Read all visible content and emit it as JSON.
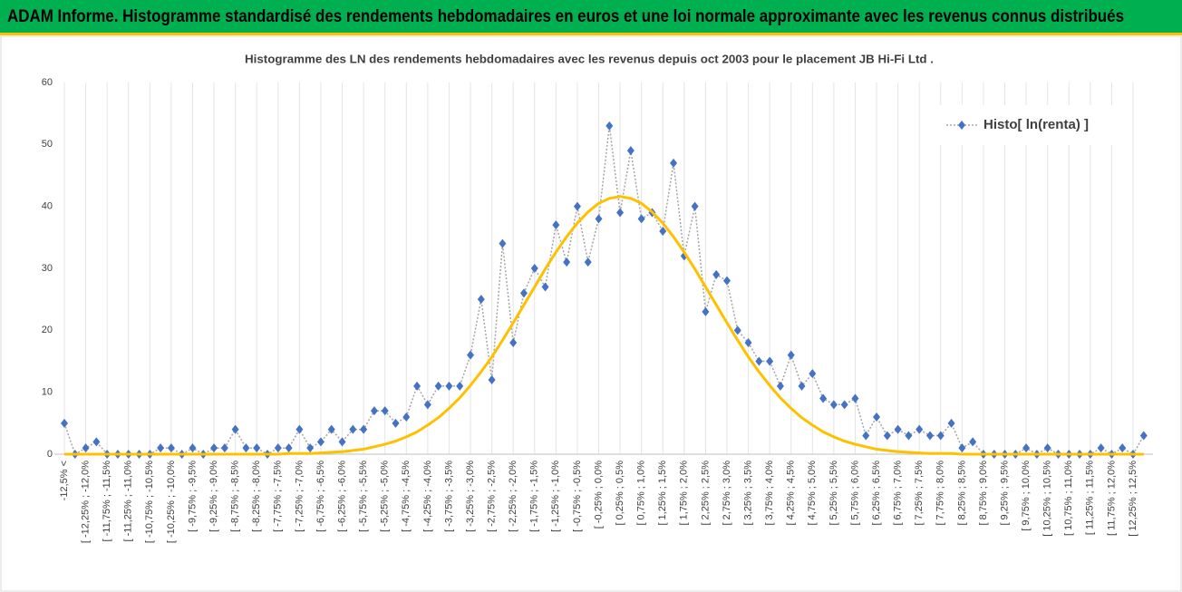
{
  "header": {
    "title": "ADAM Informe. Histogramme standardisé des rendements hebdomadaires en euros et une loi normale approximante avec les revenus connus distribués"
  },
  "chart_data": {
    "type": "line",
    "title": "Histogramme des LN des rendements hebdomadaires avec les revenus depuis oct 2003 pour le placement JB Hi-Fi Ltd .",
    "categories": [
      "-12,5% <",
      null,
      "[ -12,25% ; -12,0%",
      null,
      "[ -11,75% ; -11,5%",
      null,
      "[ -11,25% ; -11,0%",
      null,
      "[ -10,75% ; -10,5%",
      null,
      "[ -10,25% ; -10,0%",
      null,
      "[ -9,75% ; -9,5%",
      null,
      "[ -9,25% ; -9,0%",
      null,
      "[ -8,75% ; -8,5%",
      null,
      "[ -8,25% ; -8,0%",
      null,
      "[ -7,75% ; -7,5%",
      null,
      "[ -7,25% ; -7,0%",
      null,
      "[ -6,75% ; -6,5%",
      null,
      "[ -6,25% ; -6,0%",
      null,
      "[ -5,75% ; -5,5%",
      null,
      "[ -5,25% ; -5,0%",
      null,
      "[ -4,75% ; -4,5%",
      null,
      "[ -4,25% ; -4,0%",
      null,
      "[ -3,75% ; -3,5%",
      null,
      "[ -3,25% ; -3,0%",
      null,
      "[ -2,75% ; -2,5%",
      null,
      "[ -2,25% ; -2,0%",
      null,
      "[ -1,75% ; -1,5%",
      null,
      "[ -1,25% ; -1,0%",
      null,
      "[ -0,75% ; -0,5%",
      null,
      "[ -0,25% ; 0,0%",
      null,
      "[ 0,25% ; 0,5%",
      null,
      "[ 0,75% ; 1,0%",
      null,
      "[ 1,25% ; 1,5%",
      null,
      "[ 1,75% ; 2,0%",
      null,
      "[ 2,25% ; 2,5%",
      null,
      "[ 2,75% ; 3,0%",
      null,
      "[ 3,25% ; 3,5%",
      null,
      "[ 3,75% ; 4,0%",
      null,
      "[ 4,25% ; 4,5%",
      null,
      "[ 4,75% ; 5,0%",
      null,
      "[ 5,25% ; 5,5%",
      null,
      "[ 5,75% ; 6,0%",
      null,
      "[ 6,25% ; 6,5%",
      null,
      "[ 6,75% ; 7,0%",
      null,
      "[ 7,25% ; 7,5%",
      null,
      "[ 7,75% ; 8,0%",
      null,
      "[ 8,25% ; 8,5%",
      null,
      "[ 8,75% ; 9,0%",
      null,
      "[ 9,25% ; 9,5%",
      null,
      "[ 9,75% ; 10,0%",
      null,
      "[ 10,25% ; 10,5%",
      null,
      "[ 10,75% ; 11,0%",
      null,
      "[ 11,25% ; 11,5%",
      null,
      "[ 11,75% ; 12,0%",
      null,
      "[ 12,25% ; 12,5%",
      null
    ],
    "series": [
      {
        "name": "Histo[ ln(renta) ]",
        "color": "#4472c4",
        "line_color": "#a5a5a5",
        "line_style": "dotted",
        "marker": "diamond",
        "values": [
          5,
          0,
          1,
          2,
          0,
          0,
          0,
          0,
          0,
          1,
          1,
          0,
          1,
          0,
          1,
          1,
          4,
          1,
          1,
          0,
          1,
          1,
          4,
          1,
          2,
          4,
          2,
          4,
          4,
          7,
          7,
          5,
          6,
          11,
          8,
          11,
          11,
          11,
          16,
          25,
          12,
          34,
          18,
          26,
          30,
          27,
          37,
          31,
          40,
          31,
          38,
          53,
          39,
          49,
          38,
          39,
          36,
          47,
          32,
          40,
          23,
          29,
          28,
          20,
          18,
          15,
          15,
          11,
          16,
          11,
          13,
          9,
          8,
          8,
          9,
          3,
          6,
          3,
          4,
          3,
          4,
          3,
          3,
          5,
          1,
          2,
          0,
          0,
          0,
          0,
          1,
          0,
          1,
          0,
          0,
          0,
          0,
          1,
          0,
          1,
          0,
          3
        ]
      },
      {
        "color": "#ffc000",
        "line_style": "solid",
        "values": [
          0,
          0,
          0,
          0,
          0,
          0,
          0,
          0,
          0,
          0,
          0,
          0,
          0,
          0,
          0,
          0,
          0,
          0,
          0,
          0,
          0,
          0.1,
          0.1,
          0.1,
          0.2,
          0.3,
          0.4,
          0.6,
          0.8,
          1.2,
          1.6,
          2.1,
          2.8,
          3.6,
          4.7,
          5.9,
          7.4,
          9.1,
          11.1,
          13.3,
          15.7,
          18.4,
          21.2,
          24.1,
          27.0,
          29.9,
          32.6,
          35.1,
          37.3,
          39.1,
          40.5,
          41.3,
          41.6,
          41.3,
          40.5,
          39.1,
          37.3,
          35.1,
          32.6,
          29.9,
          27.0,
          24.1,
          21.2,
          18.4,
          15.7,
          13.3,
          11.1,
          9.1,
          7.4,
          5.9,
          4.7,
          3.6,
          2.8,
          2.1,
          1.6,
          1.2,
          0.8,
          0.6,
          0.4,
          0.3,
          0.2,
          0.1,
          0.1,
          0.1,
          0,
          0,
          0,
          0,
          0,
          0,
          0,
          0,
          0,
          0,
          0,
          0,
          0,
          0,
          0,
          0,
          0,
          0
        ]
      }
    ],
    "ylim": [
      0,
      60
    ],
    "yticks": [
      0,
      10,
      20,
      30,
      40,
      50,
      60
    ],
    "grid": true,
    "legend": "top-right"
  }
}
